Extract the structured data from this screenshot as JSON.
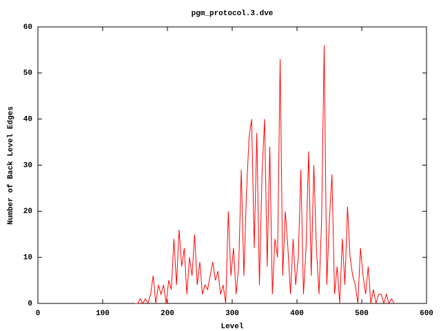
{
  "chart_data": {
    "type": "line",
    "title": "pgm_protocol.3.dve",
    "x_label": "Level",
    "y_label": "Number of Back Level Edges",
    "xlim": [
      0,
      600
    ],
    "ylim": [
      0,
      60
    ],
    "xticks": [
      0,
      100,
      200,
      300,
      400,
      500,
      600
    ],
    "yticks": [
      0,
      10,
      20,
      30,
      40,
      50,
      60
    ],
    "grid": false,
    "series": [
      {
        "color": "#ff0000",
        "x": [
          150,
          154,
          158,
          162,
          166,
          170,
          174,
          178,
          182,
          186,
          190,
          194,
          198,
          202,
          206,
          210,
          214,
          218,
          222,
          226,
          230,
          234,
          238,
          242,
          246,
          250,
          254,
          258,
          262,
          266,
          270,
          274,
          278,
          282,
          286,
          290,
          294,
          298,
          302,
          306,
          310,
          314,
          318,
          322,
          326,
          330,
          334,
          338,
          342,
          346,
          350,
          354,
          358,
          362,
          366,
          370,
          374,
          378,
          382,
          386,
          390,
          394,
          398,
          402,
          406,
          410,
          414,
          418,
          422,
          426,
          430,
          434,
          438,
          442,
          446,
          450,
          454,
          458,
          462,
          466,
          470,
          474,
          478,
          482,
          486,
          490,
          494,
          498,
          502,
          506,
          510,
          514,
          518,
          522,
          526,
          530,
          534,
          538,
          542,
          546,
          550
        ],
        "values": [
          0,
          0,
          1,
          0,
          1,
          0,
          2,
          6,
          0,
          4,
          2,
          4,
          0,
          5,
          3,
          14,
          4,
          16,
          8,
          12,
          2,
          10,
          6,
          15,
          4,
          9,
          2,
          4,
          3,
          6,
          9,
          5,
          7,
          2,
          4,
          0,
          20,
          6,
          12,
          2,
          8,
          29,
          6,
          24,
          36,
          40,
          12,
          37,
          4,
          28,
          40,
          8,
          34,
          2,
          14,
          10,
          53,
          6,
          20,
          12,
          2,
          14,
          4,
          10,
          29,
          2,
          12,
          33,
          6,
          30,
          12,
          2,
          18,
          56,
          4,
          18,
          28,
          2,
          8,
          0,
          14,
          4,
          21,
          10,
          6,
          4,
          0,
          12,
          6,
          2,
          8,
          0,
          3,
          0,
          2,
          2,
          0,
          2,
          0,
          1,
          0
        ]
      }
    ]
  }
}
